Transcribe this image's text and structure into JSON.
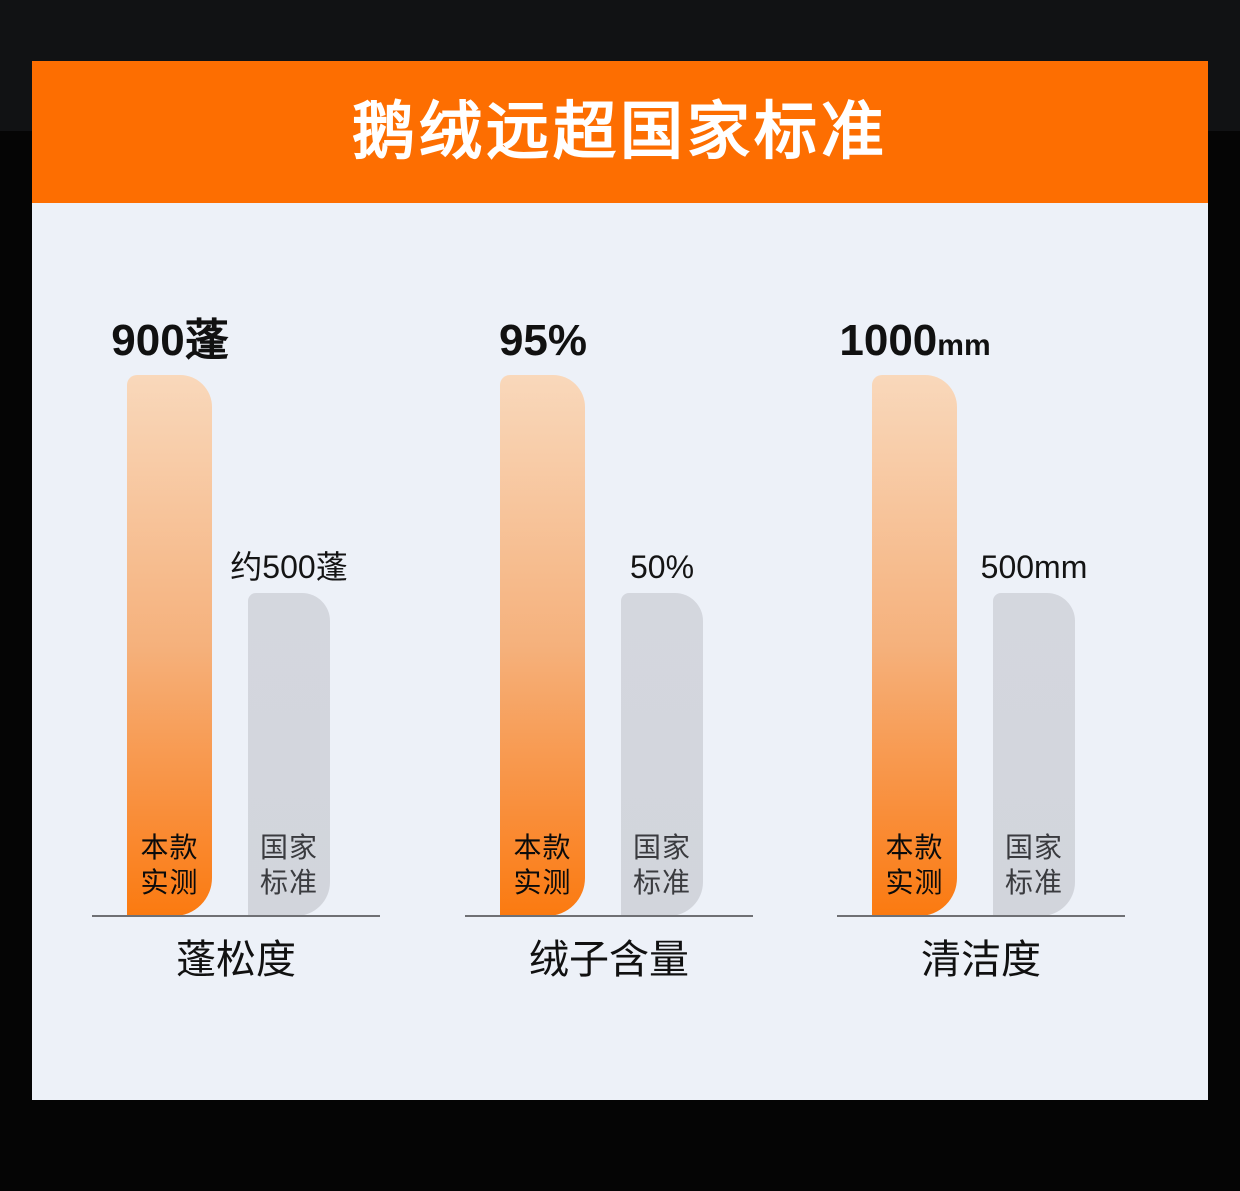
{
  "header": {
    "title": "鹅绒远超国家标准"
  },
  "colors": {
    "header_bg": "#FD6E01",
    "panel_bg": "#EDF1F8",
    "page_bg": "#050505",
    "page_bg_top_band": "#111214",
    "product_bar_gradient_top": "#F9D8BB",
    "product_bar_gradient_bottom": "#FB7A10",
    "standard_bar": "#D3D6DD",
    "baseline": "#6F7074"
  },
  "chart_data": {
    "type": "bar",
    "title": "鹅绒远超国家标准",
    "grid": false,
    "legend_position": "inside-bars",
    "series_names": [
      "本款实测",
      "国家标准"
    ],
    "categories": [
      "蓬松度",
      "绒子含量",
      "清洁度"
    ],
    "groups": [
      {
        "category": "蓬松度",
        "unit": "蓬",
        "product": {
          "series": "本款实测",
          "line1": "本款",
          "line2": "实测",
          "value_main": "900蓬",
          "value_suffix": "",
          "numeric": 900
        },
        "standard": {
          "series": "国家标准",
          "line1": "国家",
          "line2": "标准",
          "value": "约500蓬",
          "numeric": 500,
          "approximate": true
        }
      },
      {
        "category": "绒子含量",
        "unit": "%",
        "product": {
          "series": "本款实测",
          "line1": "本款",
          "line2": "实测",
          "value_main": "95%",
          "value_suffix": "",
          "numeric": 95
        },
        "standard": {
          "series": "国家标准",
          "line1": "国家",
          "line2": "标准",
          "value": "50%",
          "numeric": 50,
          "approximate": false
        }
      },
      {
        "category": "清洁度",
        "unit": "mm",
        "product": {
          "series": "本款实测",
          "line1": "本款",
          "line2": "实测",
          "value_main": "1000",
          "value_suffix": "mm",
          "numeric": 1000
        },
        "standard": {
          "series": "国家标准",
          "line1": "国家",
          "line2": "标准",
          "value": "500mm",
          "numeric": 500,
          "approximate": false
        }
      }
    ]
  }
}
